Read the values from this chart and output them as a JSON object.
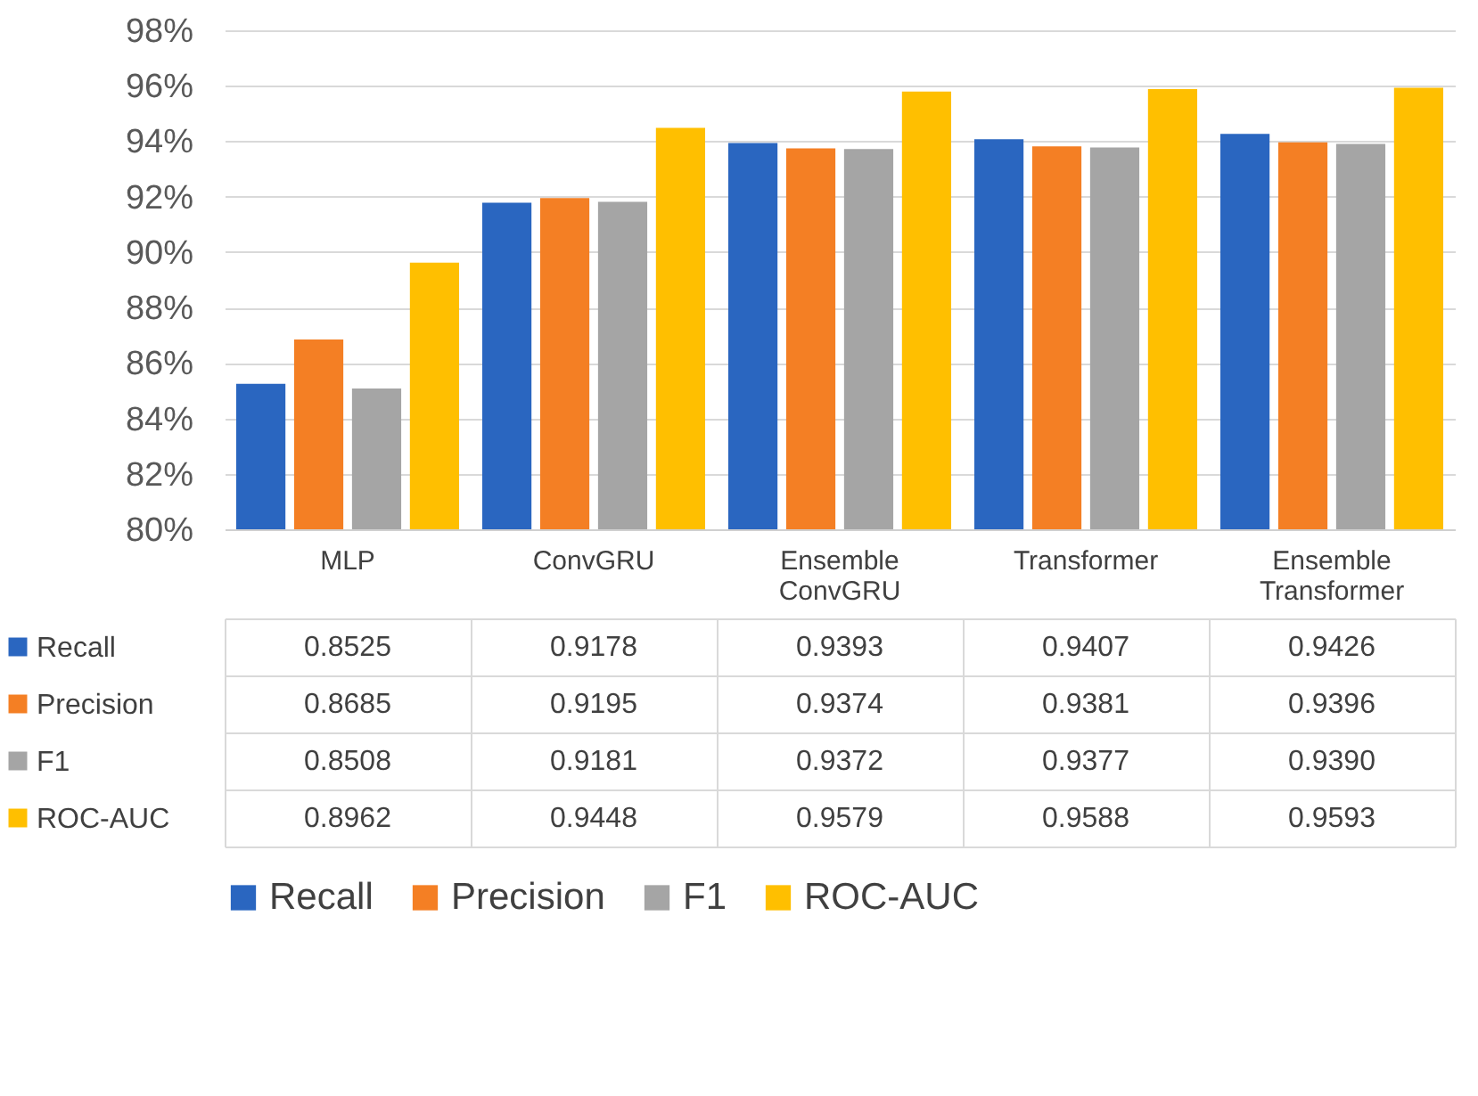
{
  "chart_data": {
    "type": "bar",
    "categories": [
      "MLP",
      "ConvGRU",
      "Ensemble ConvGRU",
      "Transformer",
      "Ensemble Transformer"
    ],
    "series": [
      {
        "name": "Recall",
        "color": "#2a66c0",
        "values": [
          0.8525,
          0.9178,
          0.9393,
          0.9407,
          0.9426
        ],
        "value_labels": [
          "0.8525",
          "0.9178",
          "0.9393",
          "0.9407",
          "0.9426"
        ]
      },
      {
        "name": "Precision",
        "color": "#f47f24",
        "values": [
          0.8685,
          0.9195,
          0.9374,
          0.9381,
          0.9396
        ],
        "value_labels": [
          "0.8685",
          "0.9195",
          "0.9374",
          "0.9381",
          "0.9396"
        ]
      },
      {
        "name": "F1",
        "color": "#a5a5a5",
        "values": [
          0.8508,
          0.9181,
          0.9372,
          0.9377,
          0.939
        ],
        "value_labels": [
          "0.8508",
          "0.9181",
          "0.9372",
          "0.9377",
          "0.9390"
        ]
      },
      {
        "name": "ROC-AUC",
        "color": "#ffbf00",
        "values": [
          0.8962,
          0.9448,
          0.9579,
          0.9588,
          0.9593
        ],
        "value_labels": [
          "0.8962",
          "0.9448",
          "0.9579",
          "0.9588",
          "0.9593"
        ]
      }
    ],
    "ylim": [
      0.8,
      0.98
    ],
    "yticks": [
      {
        "value": 0.8,
        "label": "80%"
      },
      {
        "value": 0.82,
        "label": "82%"
      },
      {
        "value": 0.84,
        "label": "84%"
      },
      {
        "value": 0.86,
        "label": "86%"
      },
      {
        "value": 0.88,
        "label": "88%"
      },
      {
        "value": 0.9,
        "label": "90%"
      },
      {
        "value": 0.92,
        "label": "92%"
      },
      {
        "value": 0.94,
        "label": "94%"
      },
      {
        "value": 0.96,
        "label": "96%"
      },
      {
        "value": 0.98,
        "label": "98%"
      }
    ],
    "grid": "y",
    "legend": "bottom"
  }
}
